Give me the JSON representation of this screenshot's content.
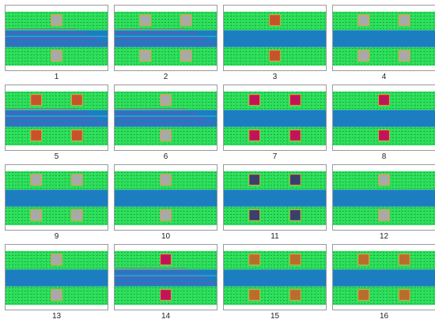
{
  "colors": {
    "green": "#2ee35c",
    "blue": "#1c7ec0",
    "mesh_dark": "#0f5a2a",
    "gray_pad": "#a9a9a9",
    "orange_pad": "#c6532b",
    "brown_pad": "#b86d2e",
    "magenta_pad": "#c0145a",
    "navy_pad": "#3a3f6b",
    "pad_border": "#e6a23c"
  },
  "panels": [
    {
      "label": "1",
      "pad": "gray",
      "pads": 1,
      "variant": "magenta-lines"
    },
    {
      "label": "2",
      "pad": "gray",
      "pads": 2,
      "variant": "magenta-lines"
    },
    {
      "label": "3",
      "pad": "orange",
      "pads": 1,
      "variant": "clean"
    },
    {
      "label": "4",
      "pad": "gray",
      "pads": 2,
      "variant": "clean"
    },
    {
      "label": "5",
      "pad": "orange",
      "pads": 2,
      "variant": "magenta-lines"
    },
    {
      "label": "6",
      "pad": "gray",
      "pads": 1,
      "variant": "magenta-lines"
    },
    {
      "label": "7",
      "pad": "magenta",
      "pads": 2,
      "variant": "clean"
    },
    {
      "label": "8",
      "pad": "magenta",
      "pads": 1,
      "variant": "clean"
    },
    {
      "label": "9",
      "pad": "gray",
      "pads": 2,
      "variant": "clean"
    },
    {
      "label": "10",
      "pad": "gray",
      "pads": 1,
      "variant": "clean"
    },
    {
      "label": "11",
      "pad": "navy",
      "pads": 2,
      "variant": "clean"
    },
    {
      "label": "12",
      "pad": "gray",
      "pads": 1,
      "variant": "clean"
    },
    {
      "label": "13",
      "pad": "gray",
      "pads": 1,
      "variant": "clean"
    },
    {
      "label": "14",
      "pad": "magenta",
      "pads": 1,
      "variant": "magenta-lines"
    },
    {
      "label": "15",
      "pad": "brown",
      "pads": 2,
      "variant": "clean"
    },
    {
      "label": "16",
      "pad": "brown",
      "pads": 2,
      "variant": "clean"
    }
  ]
}
